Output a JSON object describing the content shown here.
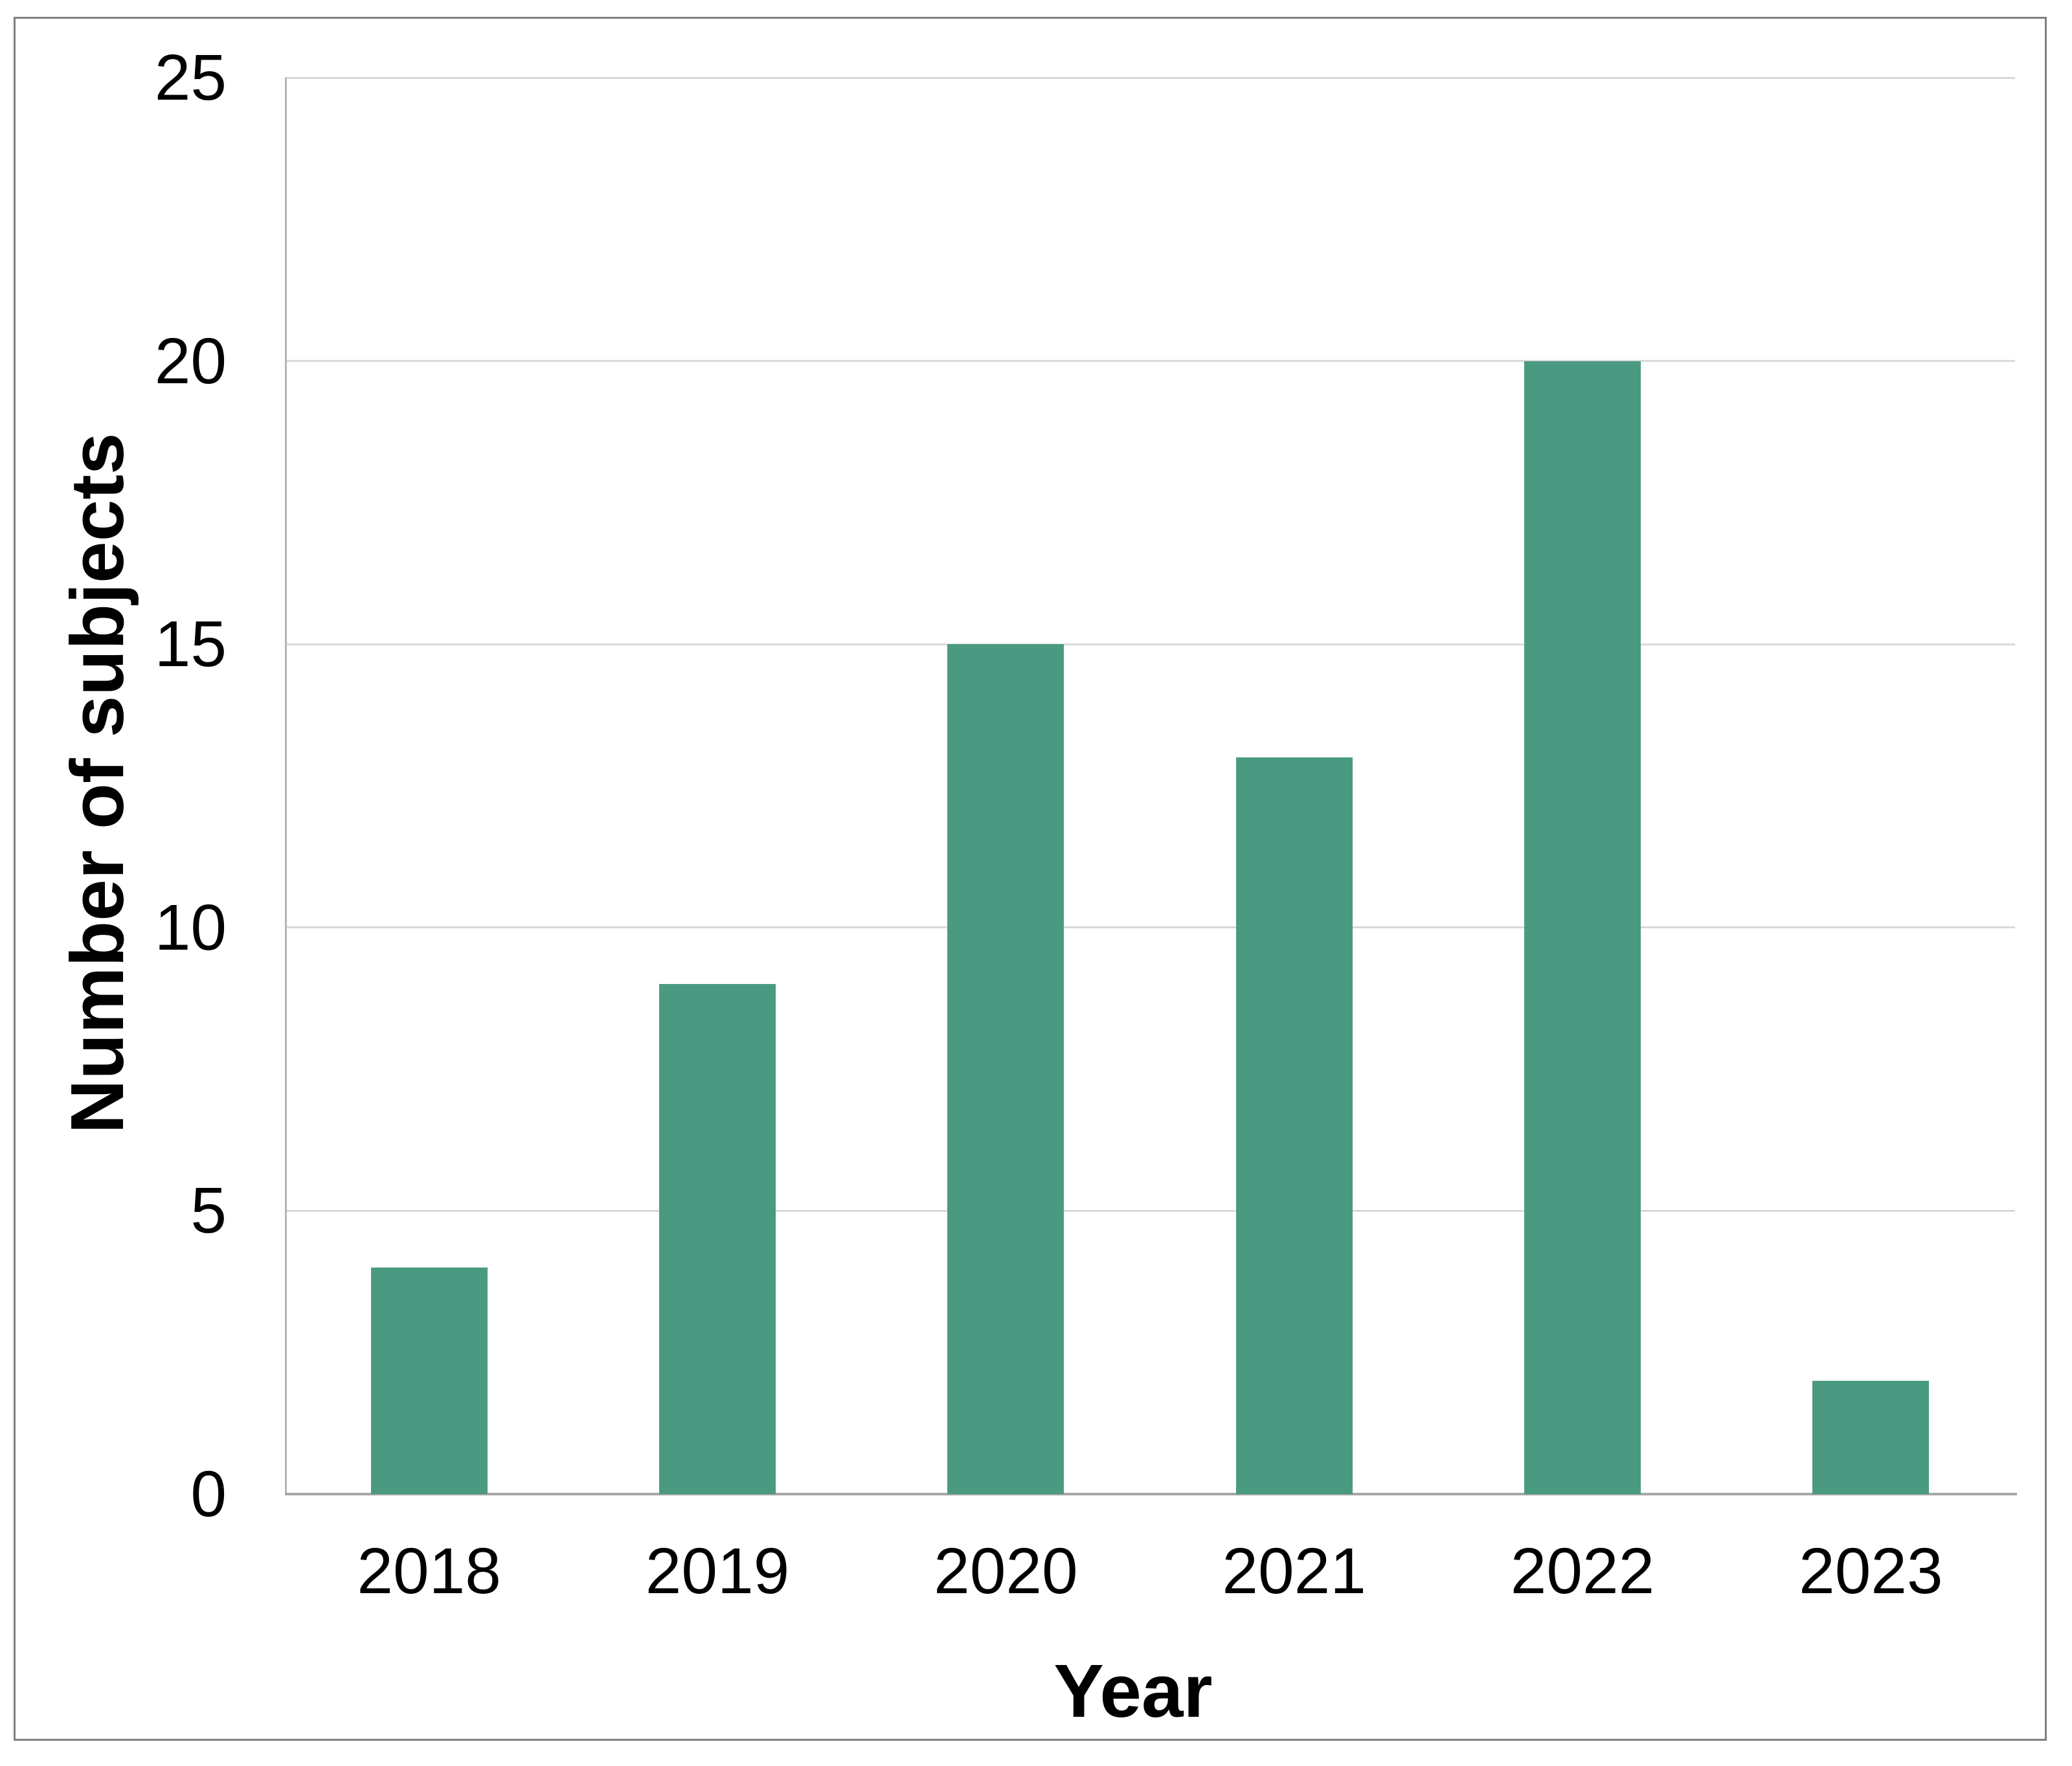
{
  "chart_data": {
    "type": "bar",
    "categories": [
      "2018",
      "2019",
      "2020",
      "2021",
      "2022",
      "2023"
    ],
    "values": [
      4,
      9,
      15,
      13,
      20,
      2
    ],
    "title": "",
    "xlabel": "Year",
    "ylabel": "Number of subjects",
    "ylim": [
      0,
      25
    ],
    "ytick_step": 5,
    "grid": true,
    "legend": "none",
    "colors": {
      "bar_fill": "#4a9a82",
      "gridline": "#d9d9d9",
      "y_axis_line": "#b3b3b3",
      "x_axis_line": "#a6a6a6",
      "frame_border": "#808080",
      "text": "#000000",
      "background": "#ffffff"
    }
  }
}
